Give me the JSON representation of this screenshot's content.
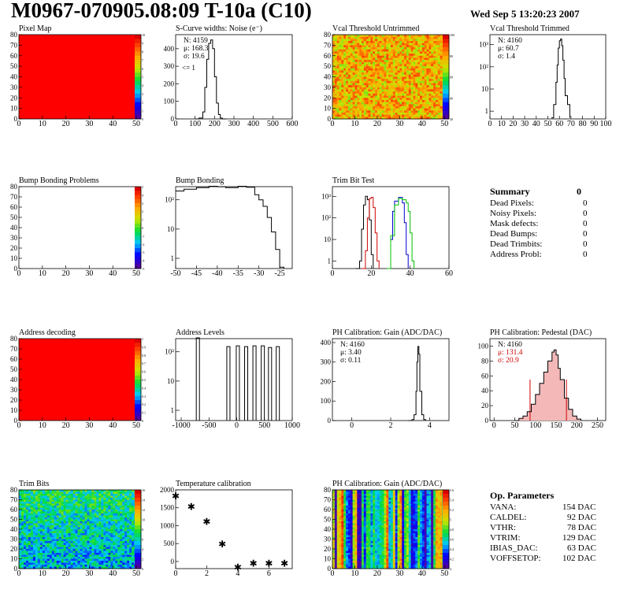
{
  "header": {
    "title": "M0967-070905.08:09 T-10a (C10)",
    "date": "Wed Sep  5 13:20:23 2007"
  },
  "chart_data": [
    {
      "id": "pixel-map",
      "type": "heatmap",
      "title": "Pixel Map",
      "x_range": [
        0,
        52
      ],
      "y_range": [
        0,
        80
      ],
      "x_ticks": [
        0,
        10,
        20,
        30,
        40,
        50
      ],
      "y_ticks": [
        0,
        10,
        20,
        30,
        40,
        50,
        60,
        70,
        80
      ],
      "fill": "uniform-red",
      "palette": "rainbow",
      "palette_ticks": [
        "10",
        "9",
        "8",
        "7",
        "6",
        "5",
        "4",
        "3",
        "2",
        "1",
        "0"
      ]
    },
    {
      "id": "scurve",
      "type": "line",
      "title": "S-Curve widths: Noise (e⁻)",
      "x_range": [
        0,
        600
      ],
      "y_range": [
        0,
        480
      ],
      "x_ticks": [
        0,
        100,
        200,
        300,
        400,
        500,
        600
      ],
      "y_ticks": [
        0,
        100,
        200,
        300,
        400
      ],
      "stats": [
        "N: 4159",
        "μ: 168.3",
        "σ: 19.6"
      ],
      "annotation": "<= 1",
      "x": [
        100,
        120,
        140,
        150,
        160,
        170,
        180,
        190,
        200,
        210,
        220,
        230,
        240,
        260
      ],
      "y": [
        0,
        5,
        40,
        180,
        340,
        430,
        450,
        400,
        240,
        90,
        25,
        5,
        0,
        0
      ]
    },
    {
      "id": "vcal-untrimmed",
      "type": "heatmap",
      "title": "Vcal Threshold Untrimmed",
      "x_range": [
        0,
        52
      ],
      "y_range": [
        0,
        80
      ],
      "x_ticks": [
        0,
        10,
        20,
        30,
        40,
        50
      ],
      "y_ticks": [
        0,
        10,
        20,
        30,
        40,
        50,
        60,
        70,
        80
      ],
      "fill": "noise-orange",
      "palette": "rainbow",
      "palette_ticks": [
        "100",
        "80",
        "60",
        "40",
        "20"
      ]
    },
    {
      "id": "vcal-trimmed",
      "type": "line",
      "title": "Vcal Threshold Trimmed",
      "x_range": [
        0,
        100
      ],
      "log_y": true,
      "x_ticks": [
        0,
        10,
        20,
        30,
        40,
        50,
        60,
        70,
        80,
        90,
        100
      ],
      "y_tick_labels": [
        "1",
        "10",
        "10²",
        "10³"
      ],
      "stats": [
        "N: 4160",
        "μ: 60.7",
        "σ:  1.4"
      ],
      "x": [
        53,
        55,
        57,
        58,
        59,
        60,
        61,
        62,
        63,
        64,
        65,
        67,
        69
      ],
      "y": [
        0.5,
        2,
        20,
        120,
        700,
        1500,
        1800,
        900,
        200,
        30,
        5,
        2,
        0.5
      ]
    },
    {
      "id": "bump-problems",
      "type": "heatmap",
      "title": "Bump Bonding Problems",
      "x_range": [
        0,
        52
      ],
      "y_range": [
        0,
        80
      ],
      "x_ticks": [
        0,
        10,
        20,
        30,
        40,
        50
      ],
      "y_ticks": [
        0,
        10,
        20,
        30,
        40,
        50,
        60,
        70,
        80
      ],
      "fill": "empty",
      "palette": "rainbow",
      "palette_ticks": [
        "5",
        "4",
        "3",
        "2",
        "1",
        "0",
        "-1",
        "-2",
        "-3",
        "-4",
        "-5"
      ]
    },
    {
      "id": "bump-bonding",
      "type": "line",
      "title": "Bump Bonding",
      "x_range": [
        -50,
        -22
      ],
      "log_y": true,
      "x_ticks": [
        -50,
        -45,
        -40,
        -35,
        -30,
        -25
      ],
      "y_tick_labels": [
        "1",
        "10",
        "10²"
      ],
      "x": [
        -50,
        -48,
        -45,
        -42,
        -40,
        -38,
        -35,
        -33,
        -31,
        -30,
        -29,
        -28,
        -27,
        -26,
        -25,
        -24
      ],
      "y": [
        200,
        230,
        260,
        290,
        280,
        260,
        290,
        270,
        150,
        100,
        60,
        25,
        8,
        2,
        0.5,
        0.3
      ]
    },
    {
      "id": "trim-bit-test",
      "type": "line",
      "title": "Trim Bit Test",
      "x_range": [
        0,
        60
      ],
      "log_y": true,
      "x_ticks": [
        0,
        20,
        40,
        60
      ],
      "y_tick_labels": [
        "1",
        "10",
        "10²",
        "10³"
      ],
      "series": [
        {
          "color": "#000000",
          "x": [
            12,
            14,
            15,
            16,
            17,
            18,
            19,
            20,
            21
          ],
          "y": [
            0.3,
            1,
            30,
            400,
            1000,
            700,
            80,
            2,
            0.3
          ]
        },
        {
          "color": "#d00000",
          "x": [
            15,
            17,
            18,
            19,
            20,
            21,
            22,
            23,
            24
          ],
          "y": [
            0.3,
            3,
            100,
            800,
            900,
            300,
            20,
            1,
            0.3
          ]
        },
        {
          "color": "#0000d0",
          "x": [
            28,
            30,
            31,
            32,
            34,
            36,
            37,
            38,
            39
          ],
          "y": [
            0.3,
            10,
            200,
            600,
            900,
            500,
            60,
            2,
            0.3
          ]
        },
        {
          "color": "#00c000",
          "x": [
            28,
            30,
            32,
            34,
            36,
            38,
            39,
            40,
            41,
            42
          ],
          "y": [
            0.4,
            15,
            400,
            800,
            700,
            500,
            200,
            20,
            1,
            0.4
          ]
        }
      ]
    },
    {
      "id": "address-decoding",
      "type": "heatmap",
      "title": "Address decoding",
      "x_range": [
        0,
        52
      ],
      "y_range": [
        0,
        80
      ],
      "x_ticks": [
        0,
        10,
        20,
        30,
        40,
        50
      ],
      "y_ticks": [
        0,
        10,
        20,
        30,
        40,
        50,
        60,
        70,
        80
      ],
      "fill": "uniform-red",
      "palette": "rainbow",
      "palette_ticks": [
        "1",
        "0.9",
        "0.8",
        "0.7",
        "0.6",
        "0.5",
        "0.4",
        "0.3",
        "0.2",
        "0.1",
        "0"
      ]
    },
    {
      "id": "address-levels",
      "type": "line",
      "title": "Address Levels",
      "x_range": [
        -1100,
        1000
      ],
      "log_y": true,
      "x_ticks": [
        -1000,
        -500,
        0,
        500,
        1000
      ],
      "y_tick_labels": [
        "1",
        "10",
        "10²"
      ],
      "peaks": [
        {
          "x": -700,
          "h": 300
        },
        {
          "x": -150,
          "h": 150
        },
        {
          "x": 20,
          "h": 160
        },
        {
          "x": 170,
          "h": 150
        },
        {
          "x": 320,
          "h": 160
        },
        {
          "x": 470,
          "h": 160
        },
        {
          "x": 600,
          "h": 140
        },
        {
          "x": 740,
          "h": 150
        }
      ]
    },
    {
      "id": "ph-gain",
      "type": "line",
      "title": "PH Calibration: Gain (ADC/DAC)",
      "x_range": [
        -1,
        5
      ],
      "y_range": [
        0,
        420
      ],
      "x_ticks": [
        0,
        2,
        4
      ],
      "y_ticks": [
        0,
        100,
        200,
        300,
        400
      ],
      "stats": [
        "N: 4160",
        "μ: 3.40",
        "σ: 0.11"
      ],
      "x": [
        2.9,
        3.1,
        3.2,
        3.3,
        3.35,
        3.4,
        3.45,
        3.5,
        3.6,
        3.7,
        3.8
      ],
      "y": [
        0,
        5,
        30,
        150,
        300,
        380,
        340,
        150,
        30,
        5,
        0
      ]
    },
    {
      "id": "ph-pedestal",
      "type": "line",
      "title": "PH Calibration: Pedestal (DAC)",
      "x_range": [
        -10,
        270
      ],
      "y_range": [
        0,
        110
      ],
      "x_ticks": [
        0,
        50,
        100,
        150,
        200,
        250
      ],
      "y_ticks": [
        0,
        20,
        40,
        60,
        80,
        100
      ],
      "stats": [
        "N: 4160",
        "μ: 131.4",
        "σ: 20.9"
      ],
      "fit_lines": [
        87,
        175
      ],
      "x": [
        50,
        60,
        70,
        80,
        90,
        100,
        110,
        120,
        130,
        140,
        145,
        150,
        155,
        160,
        170,
        180,
        190,
        200,
        210
      ],
      "y": [
        0,
        3,
        6,
        12,
        22,
        35,
        50,
        65,
        80,
        92,
        95,
        88,
        70,
        55,
        30,
        15,
        6,
        2,
        0
      ]
    },
    {
      "id": "trim-bits",
      "type": "heatmap",
      "title": "Trim Bits",
      "x_range": [
        0,
        52
      ],
      "y_range": [
        0,
        80
      ],
      "x_ticks": [
        0,
        10,
        20,
        30,
        40,
        50
      ],
      "y_ticks": [
        0,
        10,
        20,
        30,
        40,
        50,
        60,
        70,
        80
      ],
      "fill": "noise-green",
      "palette": "rainbow",
      "palette_ticks": [
        "16",
        "14",
        "12",
        "10",
        "8",
        "6",
        "4",
        "2",
        "0"
      ]
    },
    {
      "id": "temp-cal",
      "type": "scatter",
      "title": "Temperature calibration",
      "x_range": [
        0,
        7.5
      ],
      "y_range": [
        -200,
        2000
      ],
      "x_ticks": [
        0,
        2,
        4,
        6
      ],
      "y_ticks": [
        0,
        500,
        1000,
        1500,
        2000
      ],
      "x": [
        0,
        1,
        2,
        3,
        4,
        5,
        6,
        7
      ],
      "y": [
        1850,
        1550,
        1130,
        500,
        -150,
        -40,
        -40,
        -40
      ]
    },
    {
      "id": "ph-gain-map",
      "type": "heatmap",
      "title": "PH Calibration: Gain (ADC/DAC)",
      "x_range": [
        0,
        52
      ],
      "y_range": [
        0,
        80
      ],
      "x_ticks": [
        0,
        10,
        20,
        30,
        40,
        50
      ],
      "y_ticks": [
        0,
        10,
        20,
        30,
        40,
        50,
        60,
        70,
        80
      ],
      "fill": "column-stripes",
      "palette": "rainbow",
      "palette_ticks": [
        "5.6",
        "5.4",
        "5.2",
        "5",
        "4.8",
        "4.6",
        "4.4",
        "4.2",
        "4"
      ]
    }
  ],
  "summary": {
    "title": "Summary",
    "title_value": "0",
    "rows": [
      {
        "label": "Dead Pixels:",
        "value": "0"
      },
      {
        "label": "Noisy Pixels:",
        "value": "0"
      },
      {
        "label": "Mask defects:",
        "value": "0"
      },
      {
        "label": "Dead Bumps:",
        "value": "0"
      },
      {
        "label": "Dead Trimbits:",
        "value": "0"
      },
      {
        "label": "Address Probl:",
        "value": "0"
      }
    ]
  },
  "op_params": {
    "title": "Op. Parameters",
    "rows": [
      {
        "label": "VANA:",
        "value": "154 DAC"
      },
      {
        "label": "CALDEL:",
        "value": "92 DAC"
      },
      {
        "label": "VTHR:",
        "value": "78 DAC"
      },
      {
        "label": "VTRIM:",
        "value": "129 DAC"
      },
      {
        "label": "IBIAS_DAC:",
        "value": "63 DAC"
      },
      {
        "label": "VOFFSETOP:",
        "value": "102 DAC"
      }
    ]
  }
}
